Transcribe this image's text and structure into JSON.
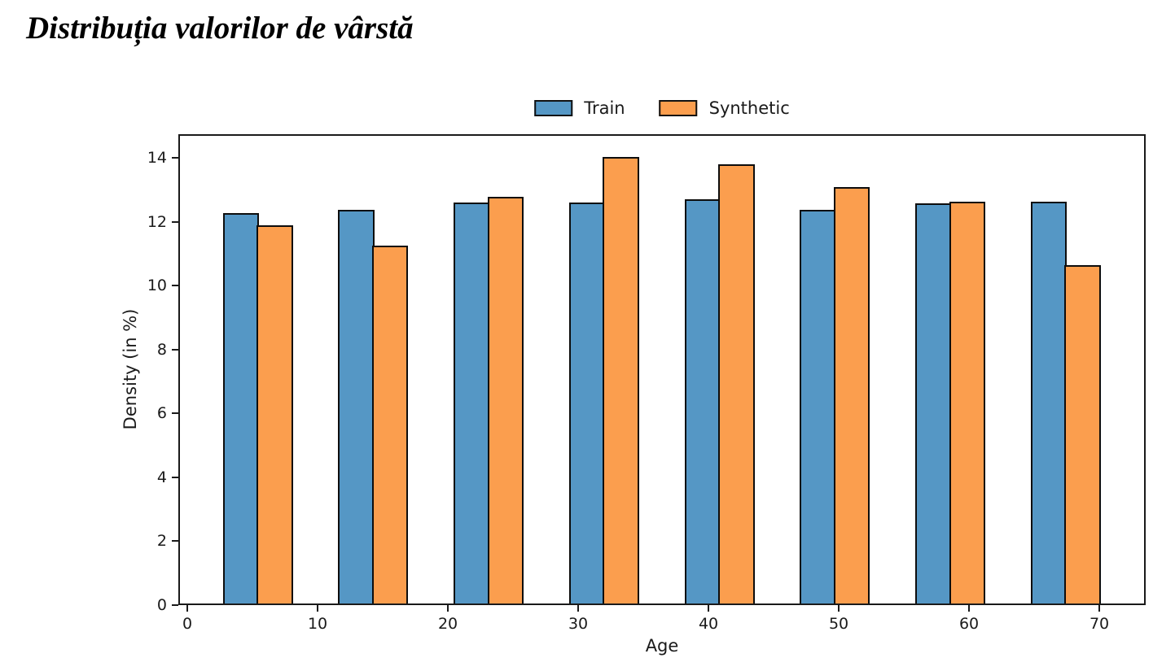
{
  "title": "Distribuția valorilor de vârstă",
  "legend": {
    "items": [
      {
        "label": "Train",
        "color": "#5597c5"
      },
      {
        "label": "Synthetic",
        "color": "#fb9e4e"
      }
    ]
  },
  "axes": {
    "xlabel": "Age",
    "ylabel": "Density (in %)"
  },
  "chart_data": {
    "type": "bar",
    "title": "Distribuția valorilor de vârstă",
    "xlabel": "Age",
    "ylabel": "Density (in %)",
    "x_ticks": [
      0,
      10,
      20,
      30,
      40,
      50,
      60,
      70
    ],
    "y_ticks": [
      0,
      2,
      4,
      6,
      8,
      10,
      12,
      14
    ],
    "xlim": [
      -0.69,
      73.56
    ],
    "ylim": [
      0,
      14.75
    ],
    "grid": false,
    "legend_position": "top-center",
    "bar_width_units": 2.72,
    "group_left_edges": [
      2.72,
      11.58,
      20.44,
      29.3,
      38.16,
      47.02,
      55.88,
      64.74
    ],
    "series": [
      {
        "name": "Train",
        "color": "#5597c5",
        "edge_color": "#0d0d0d",
        "values": [
          12.27,
          12.39,
          12.6,
          12.62,
          12.7,
          12.38,
          12.58,
          12.63
        ]
      },
      {
        "name": "Synthetic",
        "color": "#fb9e4e",
        "edge_color": "#0d0d0d",
        "values": [
          11.9,
          11.27,
          12.79,
          14.03,
          13.8,
          13.09,
          12.64,
          10.65
        ]
      }
    ]
  }
}
